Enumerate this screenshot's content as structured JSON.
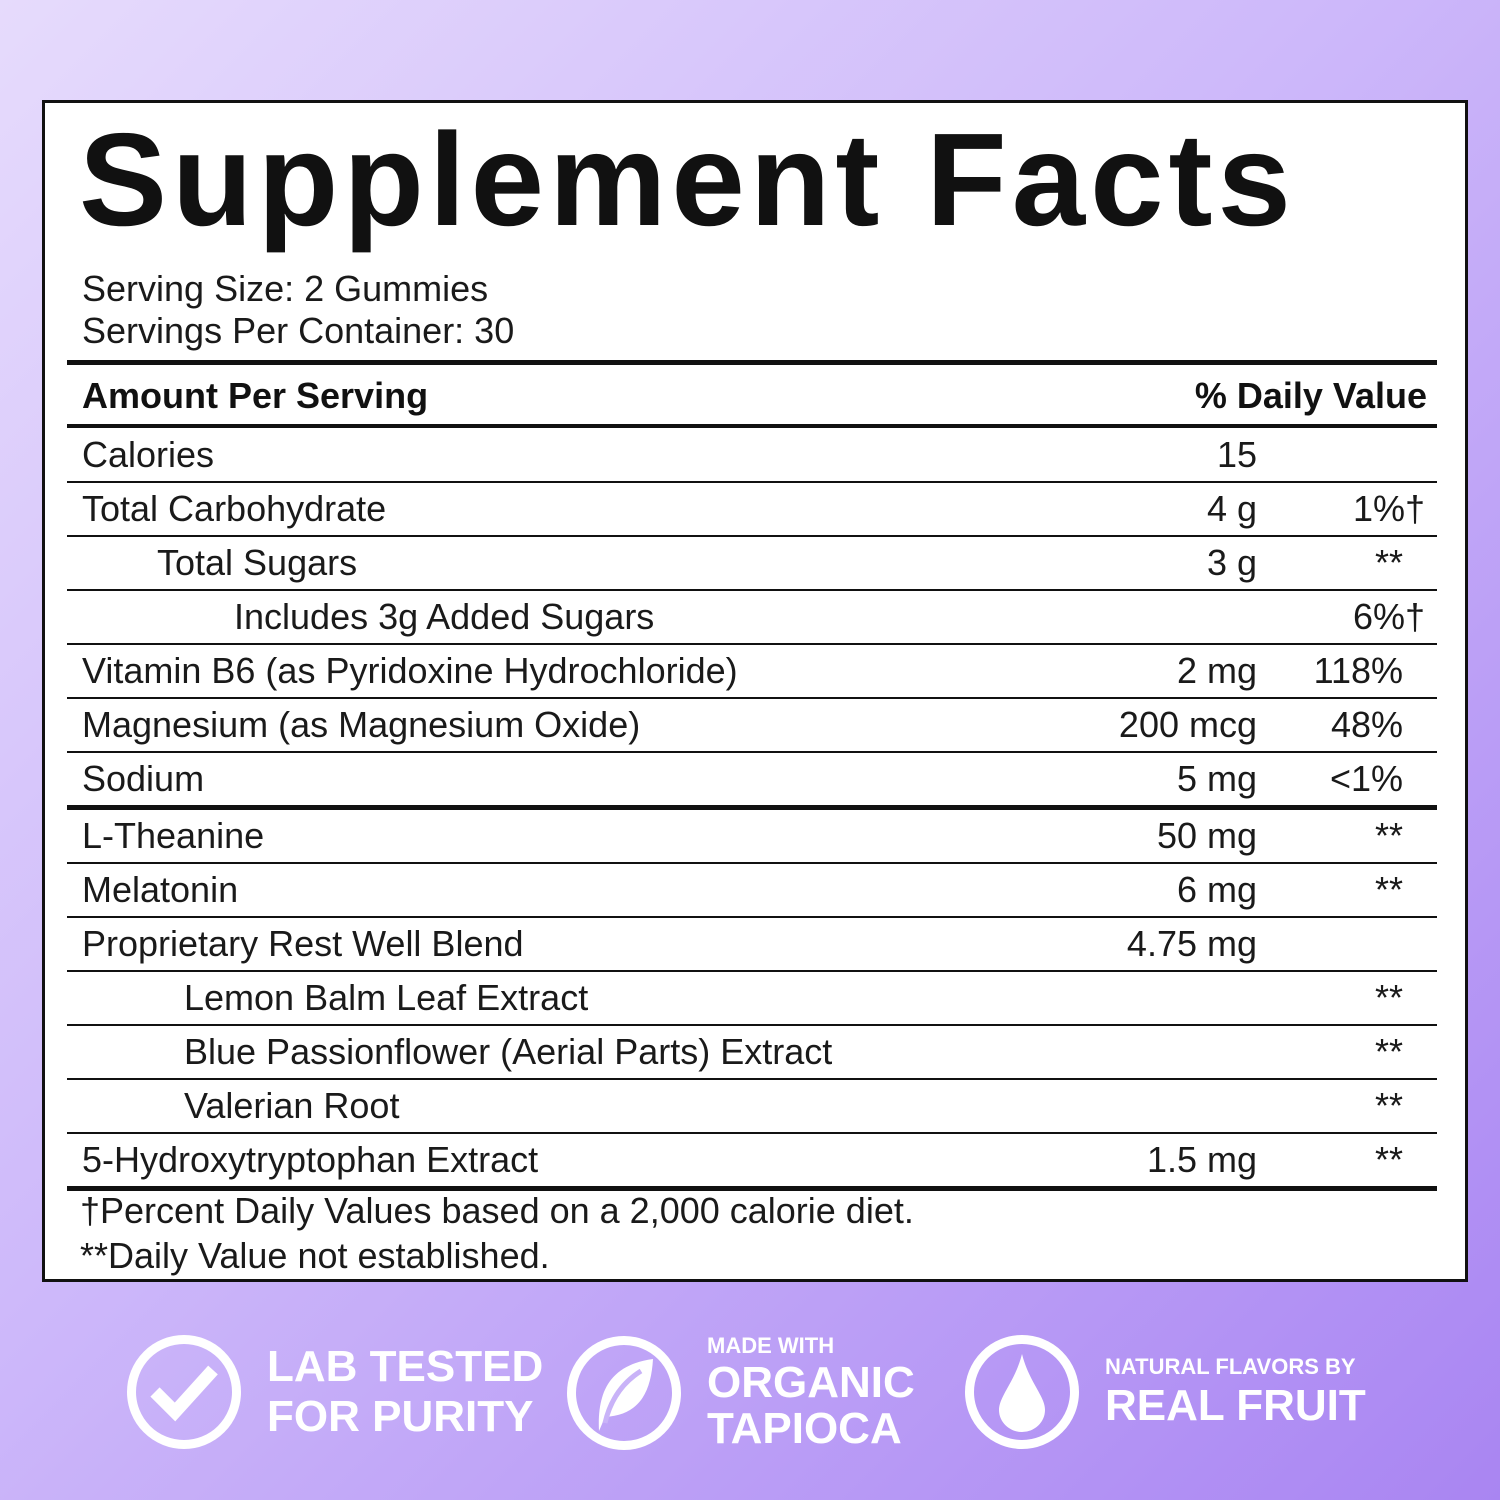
{
  "title": "Supplement Facts",
  "serving_size": "Serving Size: 2 Gummies",
  "servings_per_container": "Servings Per Container: 30",
  "header": {
    "amount": "Amount Per Serving",
    "dv": "% Daily Value"
  },
  "rows": [
    {
      "name": "Calories",
      "amount": "15",
      "dv": "",
      "indent": 0
    },
    {
      "name": "Total Carbohydrate",
      "amount": "4 g",
      "dv": "1%†",
      "indent": 0
    },
    {
      "name": "Total Sugars",
      "amount": "3 g",
      "dv": "**",
      "indent": 1
    },
    {
      "name": "Includes 3g Added Sugars",
      "amount": "",
      "dv": "6%†",
      "indent": 2
    },
    {
      "name": "Vitamin B6 (as Pyridoxine Hydrochloride)",
      "amount": "2 mg",
      "dv": "118%",
      "indent": 0
    },
    {
      "name": "Magnesium (as Magnesium Oxide)",
      "amount": "200 mcg",
      "dv": "48%",
      "indent": 0
    },
    {
      "name": "Sodium",
      "amount": "5 mg",
      "dv": "<1%",
      "indent": 0
    },
    {
      "name": "L-Theanine",
      "amount": "50 mg",
      "dv": "**",
      "indent": 0
    },
    {
      "name": "Melatonin",
      "amount": "6 mg",
      "dv": "**",
      "indent": 0
    },
    {
      "name": "Proprietary Rest Well Blend",
      "amount": "4.75 mg",
      "dv": "",
      "indent": 0
    },
    {
      "name": "Lemon Balm Leaf Extract",
      "amount": "",
      "dv": "**",
      "indent": 3
    },
    {
      "name": "Blue Passionflower (Aerial Parts) Extract",
      "amount": "",
      "dv": "**",
      "indent": 3
    },
    {
      "name": "Valerian Root",
      "amount": "",
      "dv": "**",
      "indent": 3
    },
    {
      "name": "5-Hydroxytryptophan Extract",
      "amount": "1.5 mg",
      "dv": "**",
      "indent": 0
    }
  ],
  "footnotes": [
    "†Percent Daily Values based on a 2,000 calorie diet.",
    "**Daily Value not established."
  ],
  "badges": [
    {
      "icon": "check-circle-icon",
      "lines": [
        "LAB TESTED",
        "FOR PURITY"
      ]
    },
    {
      "icon": "leaf-icon",
      "small": "MADE WITH",
      "lines": [
        "ORGANIC",
        "TAPIOCA"
      ]
    },
    {
      "icon": "drop-icon",
      "small": "NATURAL FLAVORS BY",
      "lines": [
        "REAL FRUIT"
      ]
    }
  ],
  "colors": {
    "background_start": "#e6dbfc",
    "background_end": "#a985f2",
    "text": "#111111"
  }
}
